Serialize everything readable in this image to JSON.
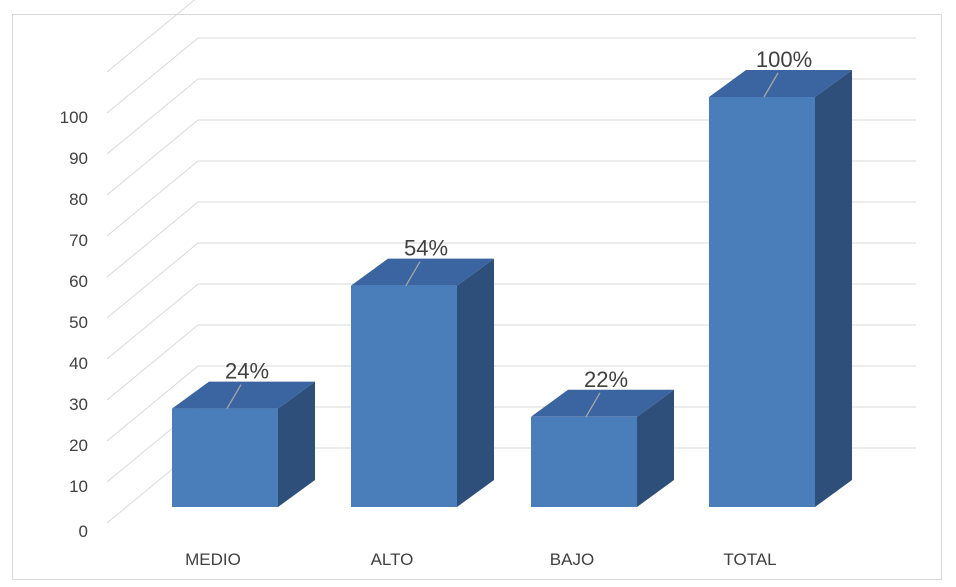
{
  "chart_data": {
    "type": "bar",
    "categories": [
      "MEDIO",
      "ALTO",
      "BAJO",
      "TOTAL"
    ],
    "values": [
      24,
      54,
      22,
      100
    ],
    "data_labels": [
      "24%",
      "54%",
      "22%",
      "100%"
    ],
    "y_ticks": [
      "0",
      "10",
      "20",
      "30",
      "40",
      "50",
      "60",
      "70",
      "80",
      "90",
      "100"
    ],
    "ylim": [
      0,
      110
    ],
    "grid": true,
    "three_d": true,
    "colors": {
      "bar_front": "#4a7ebb",
      "bar_top": "#3a65a0",
      "bar_side": "#2e4f7a",
      "grid": "#d9d9d9",
      "leader": "#a6a6a6"
    }
  }
}
